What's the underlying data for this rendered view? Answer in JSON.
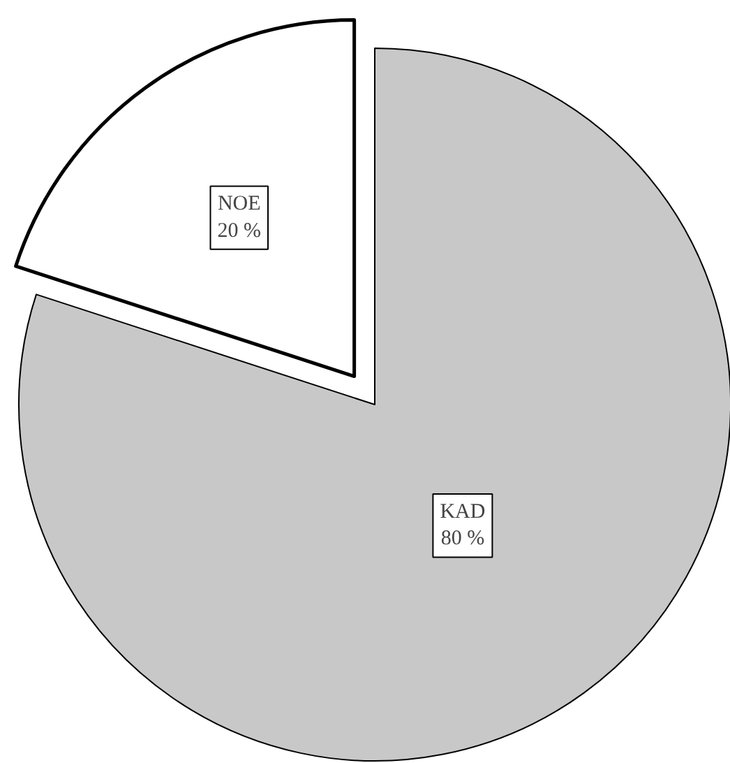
{
  "chart_data": {
    "type": "pie",
    "categories": [
      "NOE",
      "KAD"
    ],
    "values": [
      20,
      80
    ],
    "colors": [
      "#ffffff",
      "#c8c8c8"
    ],
    "value_labels": [
      "20 %",
      "80 %"
    ]
  }
}
